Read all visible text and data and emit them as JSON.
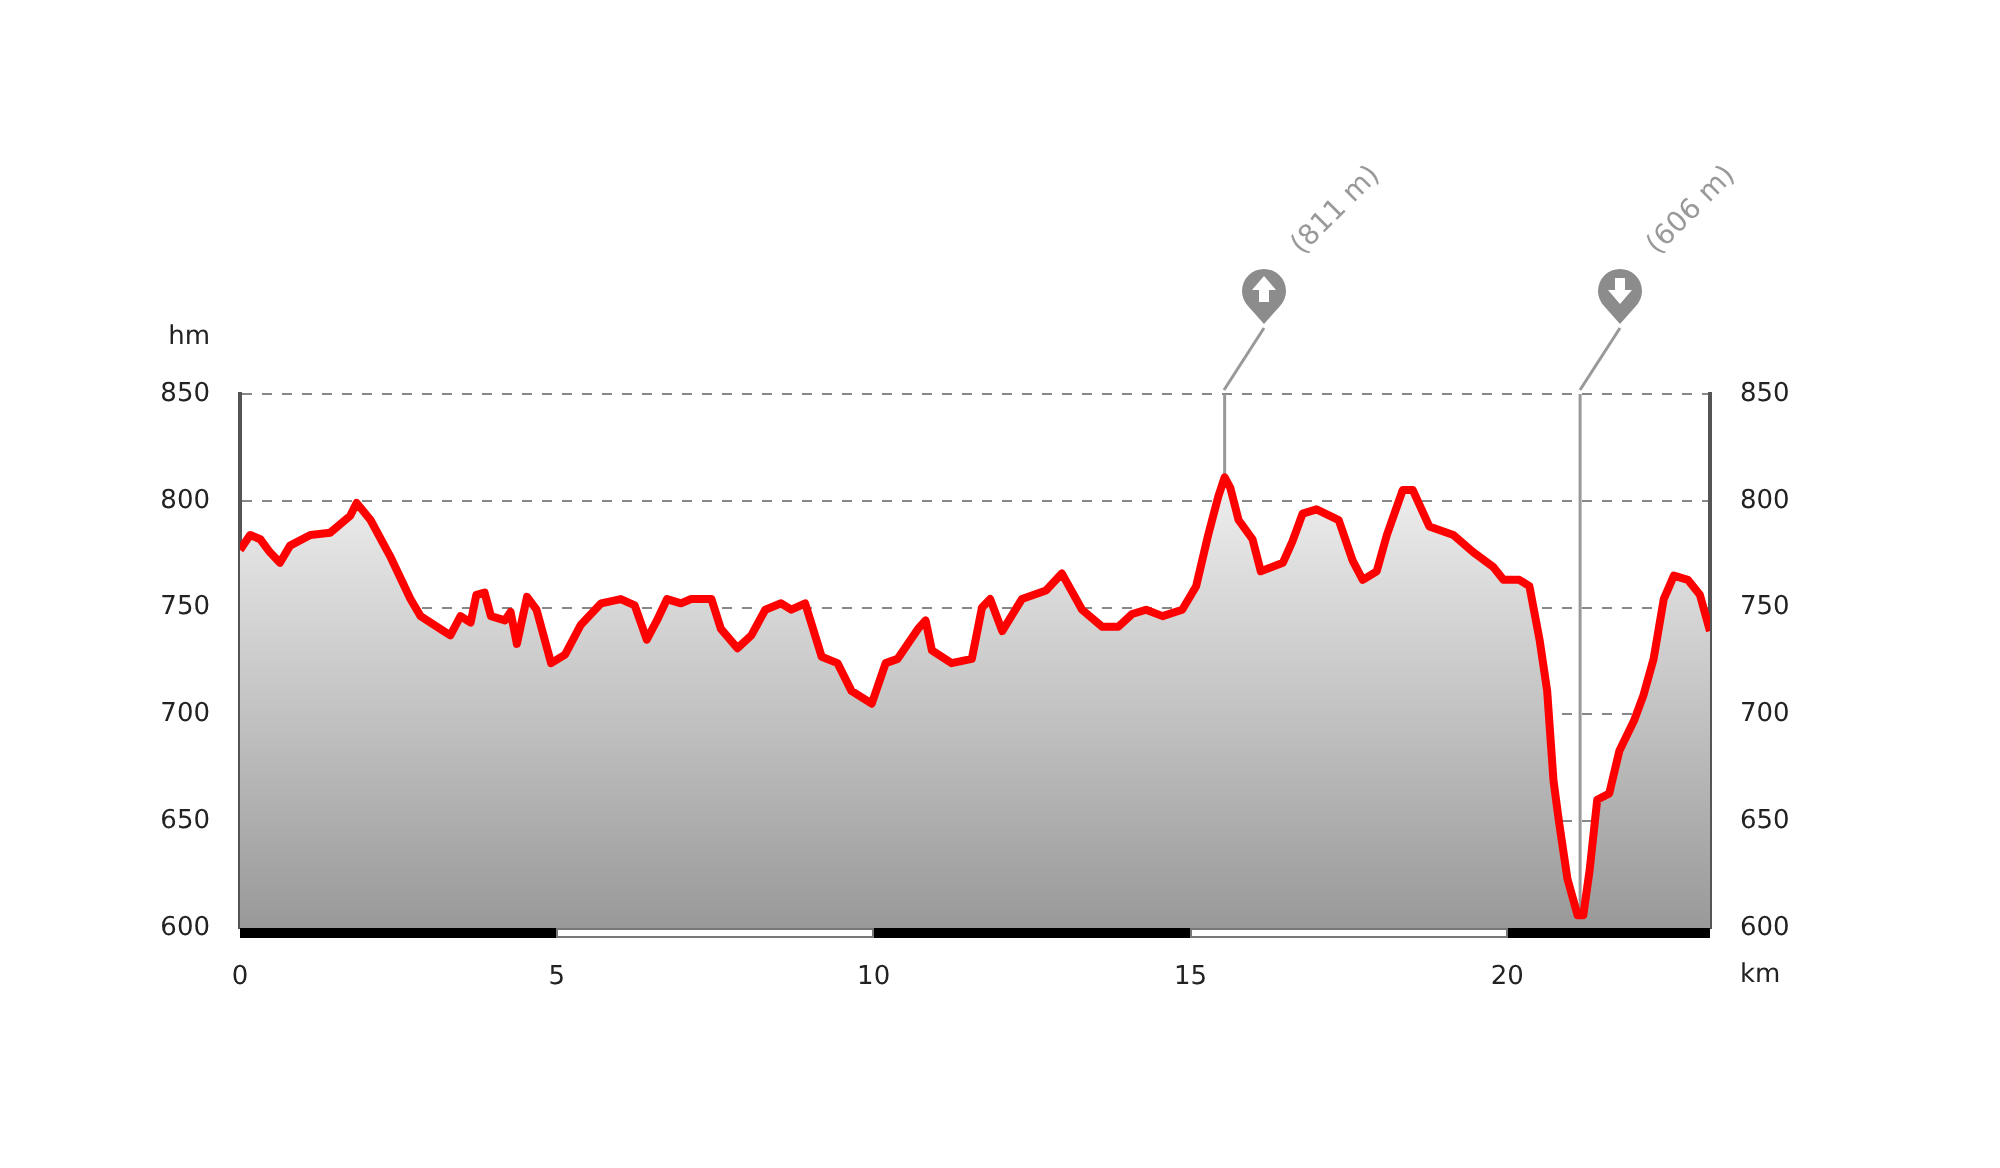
{
  "chart_data": {
    "type": "area",
    "xlabel": "km",
    "ylabel": "hm",
    "color": "#ff0000",
    "x": [
      0,
      0.16,
      0.32,
      0.47,
      0.63,
      0.79,
      1.11,
      1.42,
      1.74,
      1.84,
      2.06,
      2.37,
      2.69,
      2.85,
      3.16,
      3.32,
      3.48,
      3.64,
      3.73,
      3.86,
      3.96,
      4.18,
      4.27,
      4.37,
      4.53,
      4.68,
      4.91,
      5.13,
      5.38,
      5.7,
      6.01,
      6.23,
      6.42,
      6.58,
      6.74,
      6.96,
      7.12,
      7.44,
      7.59,
      7.85,
      8.07,
      8.29,
      8.54,
      8.7,
      8.92,
      9.18,
      9.43,
      9.65,
      9.97,
      10.19,
      10.38,
      10.7,
      10.82,
      10.92,
      11.23,
      11.55,
      11.71,
      11.84,
      12.03,
      12.34,
      12.72,
      12.97,
      13.29,
      13.61,
      13.86,
      14.08,
      14.3,
      14.56,
      14.87,
      15.09,
      15.28,
      15.44,
      15.54,
      15.63,
      15.76,
      15.98,
      16.11,
      16.46,
      16.61,
      16.77,
      16.99,
      17.34,
      17.56,
      17.72,
      17.94,
      18.1,
      18.35,
      18.51,
      18.77,
      19.15,
      19.46,
      19.78,
      19.94,
      20.19,
      20.35,
      20.51,
      20.63,
      20.73,
      20.82,
      20.95,
      21.11,
      21.2,
      21.3,
      21.42,
      21.61,
      21.77,
      22,
      22.15,
      22.31,
      22.47,
      22.63,
      22.85,
      23.04,
      23.2
    ],
    "values": [
      777,
      784,
      782,
      776,
      771,
      779,
      784,
      785,
      793,
      799,
      791,
      774,
      754,
      746,
      740,
      737,
      746,
      743,
      756,
      757,
      746,
      744,
      748,
      733,
      755,
      749,
      724,
      728,
      742,
      752,
      754,
      751,
      735,
      744,
      754,
      752,
      754,
      754,
      740,
      731,
      737,
      749,
      752,
      749,
      752,
      727,
      724,
      711,
      705,
      724,
      726,
      740,
      744,
      730,
      724,
      726,
      750,
      754,
      739,
      754,
      758,
      766,
      749,
      741,
      741,
      747,
      749,
      746,
      749,
      760,
      784,
      802,
      811,
      806,
      791,
      782,
      767,
      771,
      781,
      794,
      796,
      791,
      772,
      763,
      767,
      784,
      805,
      805,
      788,
      784,
      776,
      769,
      763,
      763,
      760,
      735,
      711,
      669,
      649,
      623,
      606,
      606,
      627,
      660,
      663,
      683,
      697,
      709,
      726,
      754,
      765,
      763,
      756,
      739
    ],
    "xlim": [
      0,
      23.2
    ],
    "xticks": [
      0,
      5,
      10,
      15,
      20
    ],
    "ylim": [
      600,
      850
    ],
    "yticks": [
      600,
      650,
      700,
      750,
      800,
      850
    ],
    "y2lim": [
      600,
      850
    ],
    "y2ticks": [
      600,
      650,
      700,
      750,
      800,
      850
    ],
    "grid": "y",
    "line_style": "solid",
    "marker": "none",
    "legend": false,
    "ref_lines": [
      {
        "axis": "x",
        "value": 15.54,
        "color": "#999999"
      },
      {
        "axis": "x",
        "value": 21.15,
        "color": "#999999"
      }
    ],
    "annotations": [
      "(811 m)",
      "(606 m)"
    ]
  }
}
